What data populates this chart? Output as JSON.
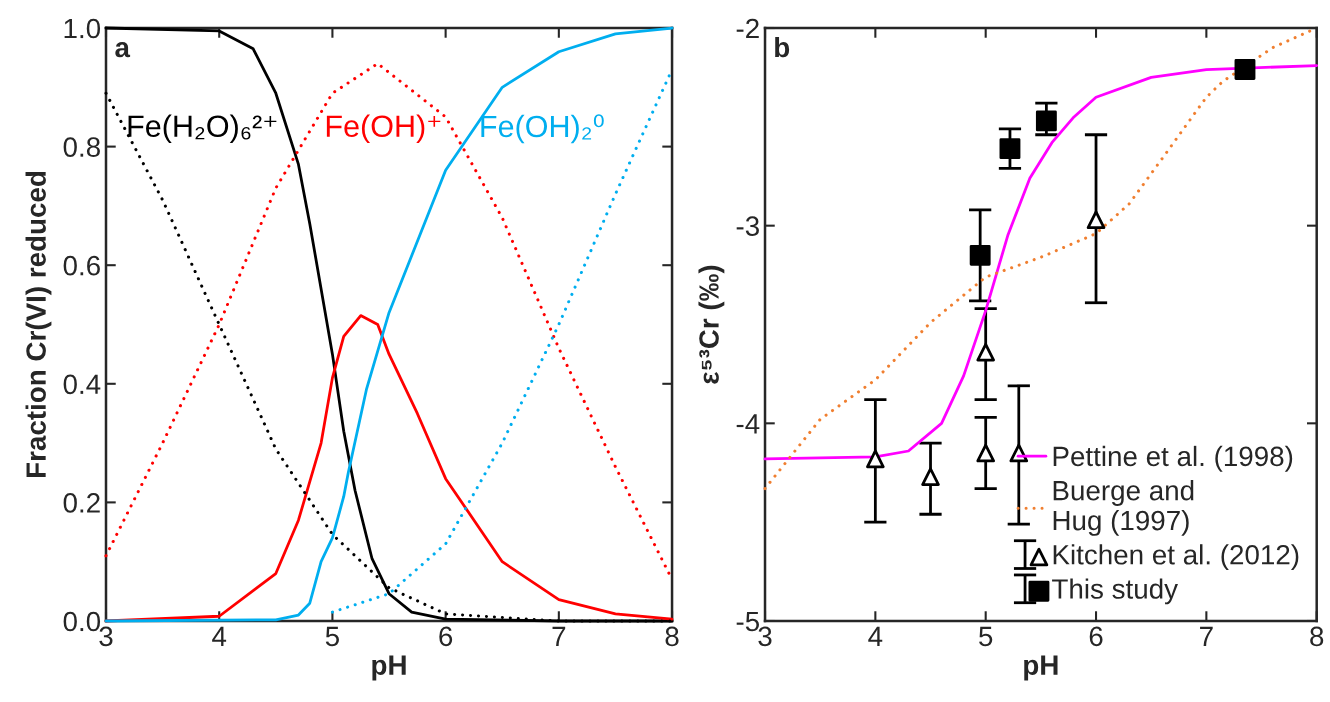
{
  "chart_data": [
    {
      "type": "line",
      "xlabel": "pH",
      "ylabel": "Fraction Cr(VI) reduced",
      "xlim": [
        3,
        8
      ],
      "xticks": [
        3,
        4,
        5,
        6,
        7,
        8
      ],
      "ylim": [
        0,
        1
      ],
      "yticks": [
        {
          "value": 0,
          "label": "0.0"
        },
        {
          "value": 0.2,
          "label": "0.2"
        },
        {
          "value": 0.4,
          "label": "0.4"
        },
        {
          "value": 0.6,
          "label": "0.6"
        },
        {
          "value": 0.8,
          "label": "0.8"
        },
        {
          "value": 1,
          "label": "1.0"
        }
      ],
      "annotations": [
        "a"
      ],
      "series": [
        {
          "color": "#000000",
          "line_style": "solid",
          "x": [
            3,
            4,
            4.3,
            4.5,
            4.7,
            4.8,
            5.0,
            5.1,
            5.2,
            5.35,
            5.5,
            5.7,
            6,
            7,
            8
          ],
          "values": [
            1.0,
            0.995,
            0.965,
            0.89,
            0.77,
            0.67,
            0.45,
            0.32,
            0.22,
            0.105,
            0.046,
            0.015,
            0.003,
            0,
            0
          ]
        },
        {
          "color": "#ff0000",
          "line_style": "solid",
          "x": [
            3,
            4,
            4.5,
            4.7,
            4.9,
            5.0,
            5.1,
            5.25,
            5.4,
            5.5,
            5.75,
            6,
            6.5,
            7,
            7.5,
            8
          ],
          "values": [
            0,
            0.008,
            0.08,
            0.17,
            0.3,
            0.41,
            0.48,
            0.515,
            0.5,
            0.45,
            0.35,
            0.24,
            0.1,
            0.036,
            0.012,
            0.003
          ]
        },
        {
          "color": "#00aeef",
          "line_style": "solid",
          "x": [
            3,
            4.5,
            4.7,
            4.8,
            4.9,
            5.0,
            5.1,
            5.14,
            5.3,
            5.5,
            6,
            6.5,
            7,
            7.5,
            8
          ],
          "values": [
            0,
            0.002,
            0.01,
            0.03,
            0.1,
            0.14,
            0.21,
            0.25,
            0.39,
            0.52,
            0.76,
            0.9,
            0.96,
            0.99,
            1.0
          ]
        },
        {
          "name": "Fe(H₂O)₆²⁺",
          "color": "#000000",
          "line_style": "dotted",
          "x": [
            3,
            3.5,
            4,
            4.5,
            5,
            5.5,
            6,
            7,
            8
          ],
          "values": [
            0.89,
            0.71,
            0.5,
            0.29,
            0.146,
            0.056,
            0.012,
            0,
            0
          ]
        },
        {
          "name": "Fe(OH)⁺",
          "color": "#ff0000",
          "line_style": "dotted",
          "x": [
            3,
            3.5,
            4,
            4.5,
            5,
            5.4,
            6,
            6.5,
            7,
            7.5,
            8
          ],
          "values": [
            0.11,
            0.3,
            0.5,
            0.73,
            0.89,
            0.94,
            0.85,
            0.68,
            0.46,
            0.26,
            0.07
          ]
        },
        {
          "name": "Fe(OH)₂⁰",
          "color": "#00aeef",
          "line_style": "dotted",
          "x": [
            5,
            5.5,
            6,
            6.5,
            7,
            7.5,
            8
          ],
          "values": [
            0.015,
            0.046,
            0.13,
            0.3,
            0.5,
            0.72,
            0.93
          ]
        }
      ]
    },
    {
      "type": "line",
      "xlabel": "pH",
      "ylabel": "ε⁵³Cr (‰)",
      "xlim": [
        3,
        8
      ],
      "xticks": [
        3,
        4,
        5,
        6,
        7,
        8
      ],
      "ylim": [
        -5,
        -2
      ],
      "yticks": [
        -5,
        -4,
        -3,
        -2
      ],
      "annotations": [
        "b"
      ],
      "legend": "bottom right",
      "series": [
        {
          "name": "Pettine et al. (1998)",
          "color": "#ff00ff",
          "line_style": "solid",
          "x": [
            3,
            4,
            4.3,
            4.6,
            4.8,
            5.0,
            5.2,
            5.4,
            5.6,
            5.8,
            6,
            6.5,
            7,
            8
          ],
          "values": [
            -4.18,
            -4.17,
            -4.14,
            -4.0,
            -3.76,
            -3.43,
            -3.05,
            -2.76,
            -2.58,
            -2.45,
            -2.35,
            -2.25,
            -2.21,
            -2.19
          ]
        },
        {
          "name": "Buerge and\nHug (1997)",
          "color": "#f07f30",
          "line_style": "dotted",
          "x": [
            3,
            3.5,
            4,
            4.5,
            5,
            5.5,
            6,
            6.3,
            6.6,
            7,
            7.15,
            7.6,
            8
          ],
          "values": [
            -4.33,
            -3.98,
            -3.78,
            -3.49,
            -3.26,
            -3.16,
            -3.04,
            -2.89,
            -2.66,
            -2.35,
            -2.27,
            -2.1,
            -2.0
          ]
        },
        {
          "name": "Kitchen et al. (2012)",
          "type": "scatter",
          "marker": "triangle",
          "color": "#000000",
          "x": [
            4.0,
            4.5,
            5.0,
            5.0,
            5.3,
            6.0
          ],
          "values": [
            -4.18,
            -4.27,
            -3.64,
            -4.15,
            -4.15,
            -2.97
          ],
          "errors": [
            [
              -4.5,
              -3.88
            ],
            [
              -4.46,
              -4.1
            ],
            [
              -3.88,
              -3.42
            ],
            [
              -4.33,
              -3.97
            ],
            [
              -4.51,
              -3.81
            ],
            [
              -3.39,
              -2.54
            ]
          ]
        },
        {
          "name": "This study",
          "type": "scatter",
          "marker": "square",
          "color": "#000000",
          "x": [
            4.95,
            5.22,
            5.55,
            7.35
          ],
          "values": [
            -3.15,
            -2.61,
            -2.47,
            -2.21
          ],
          "errors": [
            [
              -3.38,
              -2.92
            ],
            [
              -2.71,
              -2.51
            ],
            [
              -2.54,
              -2.38
            ],
            null
          ]
        }
      ]
    }
  ]
}
